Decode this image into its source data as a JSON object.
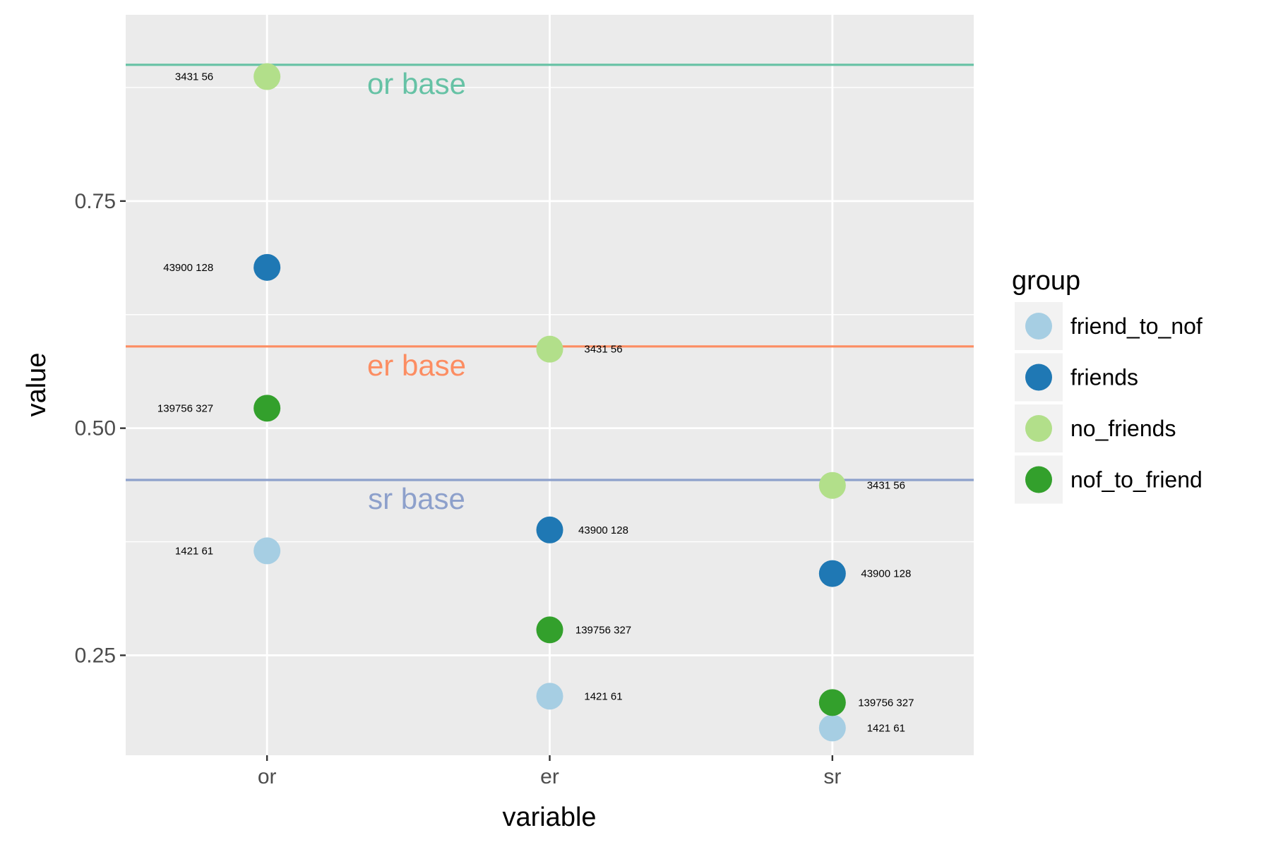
{
  "chart_data": {
    "type": "scatter",
    "xlabel": "variable",
    "ylabel": "value",
    "categories": [
      "or",
      "er",
      "sr"
    ],
    "y_ticks": [
      0.25,
      0.5,
      0.75
    ],
    "y_tick_labels": [
      "0.25",
      "0.50",
      "0.75"
    ],
    "ylim": [
      0.14,
      0.955
    ],
    "grid": true,
    "legend": {
      "title": "group",
      "position": "right"
    },
    "series": [
      {
        "name": "friend_to_nof",
        "color": "#a6cee3",
        "points": [
          {
            "x": "or",
            "y": 0.365,
            "label": "1421 61"
          },
          {
            "x": "er",
            "y": 0.205,
            "label": "1421 61"
          },
          {
            "x": "sr",
            "y": 0.17,
            "label": "1421 61"
          }
        ]
      },
      {
        "name": "friends",
        "color": "#1f78b4",
        "points": [
          {
            "x": "or",
            "y": 0.677,
            "label": "43900 128"
          },
          {
            "x": "er",
            "y": 0.388,
            "label": "43900 128"
          },
          {
            "x": "sr",
            "y": 0.34,
            "label": "43900 128"
          }
        ]
      },
      {
        "name": "no_friends",
        "color": "#b2df8a",
        "points": [
          {
            "x": "or",
            "y": 0.887,
            "label": "3431 56"
          },
          {
            "x": "er",
            "y": 0.587,
            "label": "3431 56"
          },
          {
            "x": "sr",
            "y": 0.437,
            "label": "3431 56"
          }
        ]
      },
      {
        "name": "nof_to_friend",
        "color": "#33a02c",
        "points": [
          {
            "x": "or",
            "y": 0.522,
            "label": "139756 327"
          },
          {
            "x": "er",
            "y": 0.278,
            "label": "139756 327"
          },
          {
            "x": "sr",
            "y": 0.198,
            "label": "139756 327"
          }
        ]
      }
    ],
    "reference_lines": [
      {
        "label": "or base",
        "y": 0.9,
        "color": "#66c2a5"
      },
      {
        "label": "er base",
        "y": 0.59,
        "color": "#fc8d62"
      },
      {
        "label": "sr base",
        "y": 0.443,
        "color": "#8da0cb"
      }
    ]
  }
}
